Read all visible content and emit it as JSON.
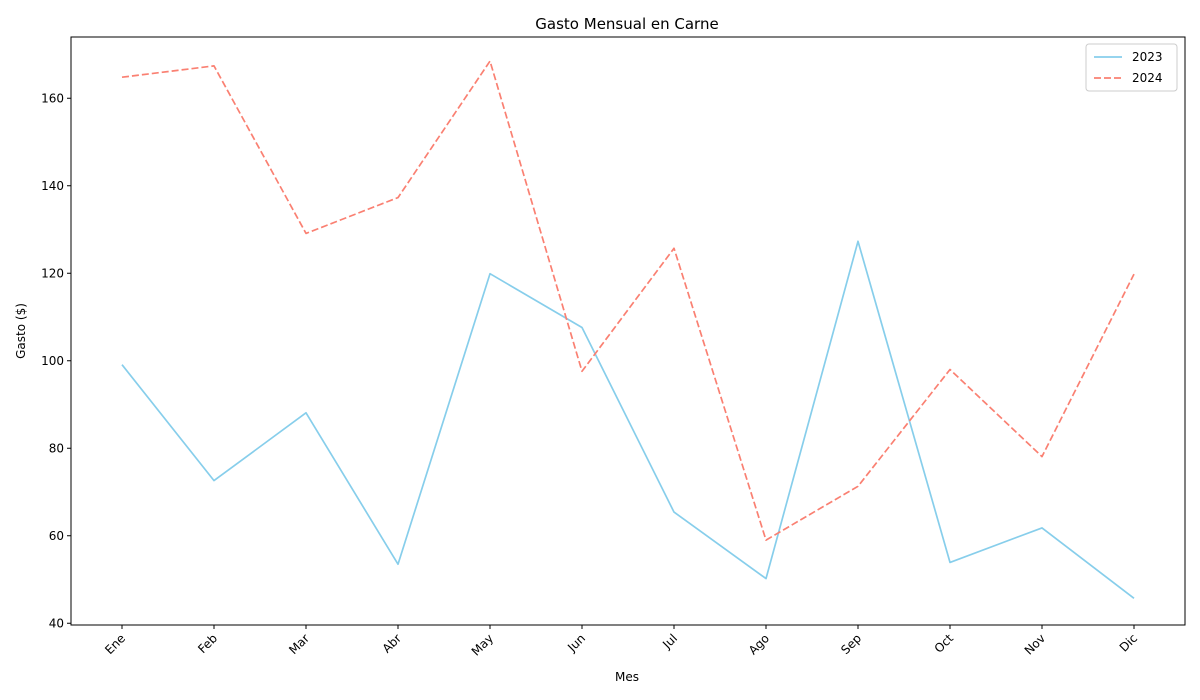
{
  "chart_data": {
    "type": "line",
    "title": "Gasto Mensual en Carne",
    "xlabel": "Mes",
    "ylabel": "Gasto ($)",
    "categories": [
      "Ene",
      "Feb",
      "Mar",
      "Abr",
      "May",
      "Jun",
      "Jul",
      "Ago",
      "Sep",
      "Oct",
      "Nov",
      "Dic"
    ],
    "ylim": [
      39.6,
      174
    ],
    "yticks": [
      40,
      60,
      80,
      100,
      120,
      140,
      160
    ],
    "legend_position": "top-right",
    "grid": false,
    "series": [
      {
        "name": "2023",
        "color": "#87ceeb",
        "dash": "solid",
        "values": [
          99.1,
          72.6,
          88.1,
          53.5,
          119.9,
          107.6,
          65.4,
          50.2,
          127.3,
          53.9,
          61.8,
          45.7
        ]
      },
      {
        "name": "2024",
        "color": "#fa8072",
        "dash": "dashed",
        "values": [
          164.8,
          167.4,
          129.1,
          137.3,
          168.5,
          97.6,
          125.7,
          59.0,
          71.3,
          98.0,
          78.1,
          119.8
        ]
      }
    ]
  }
}
